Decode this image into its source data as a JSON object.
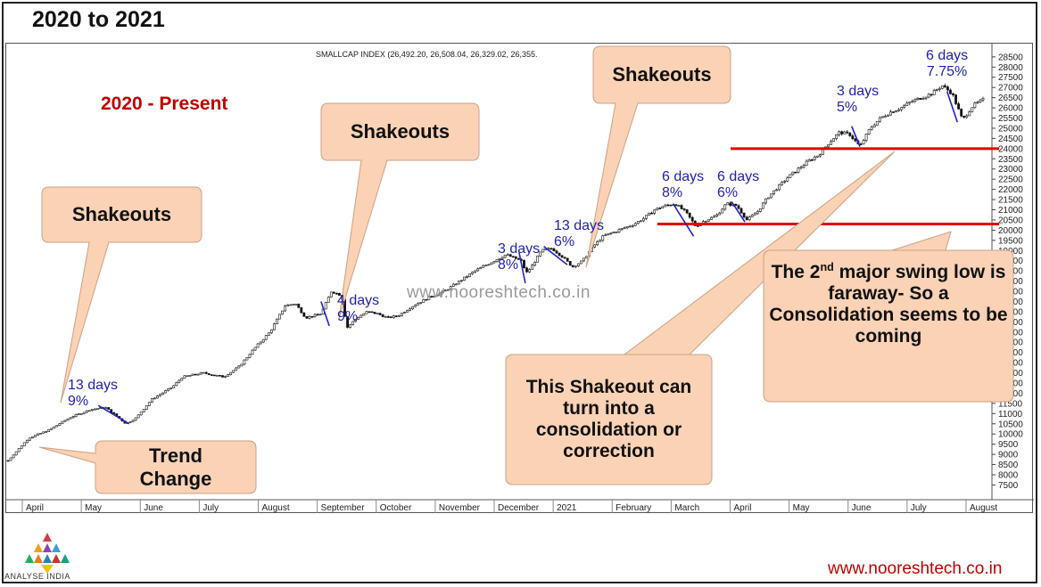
{
  "page": {
    "title": "2020 to 2021",
    "period_label": "2020 - Present",
    "watermark": "www.nooreshtech.co.in",
    "site_url": "www.nooreshtech.co.in",
    "logo_text": "ANALYSE INDIA"
  },
  "callouts": [
    {
      "id": "shakeouts-1",
      "text": "Shakeouts"
    },
    {
      "id": "trend-change",
      "text": "Trend Change"
    },
    {
      "id": "shakeouts-2",
      "text": "Shakeouts"
    },
    {
      "id": "shakeouts-3",
      "text": "Shakeouts"
    },
    {
      "id": "shakeout-consolidation",
      "text": "This Shakeout can turn into a consolidation or correction"
    },
    {
      "id": "swing-low",
      "text_pre": "The 2",
      "text_sup": "nd",
      "text_post": " major swing low is faraway- So a Consolidation seems to be coming"
    }
  ],
  "annotations": [
    {
      "days": "13 days",
      "pct": "9%"
    },
    {
      "days": "4 days",
      "pct": "9%"
    },
    {
      "days": "3 days",
      "pct": "8%"
    },
    {
      "days": "13 days",
      "pct": "6%"
    },
    {
      "days": "6 days",
      "pct": "8%"
    },
    {
      "days": "6 days",
      "pct": "6%"
    },
    {
      "days": "3 days",
      "pct": "5%"
    },
    {
      "days": "6 days",
      "pct": "7.75%"
    }
  ],
  "colors": {
    "callout_fill": "#fbd2b5",
    "callout_stroke": "#c9a184",
    "support_line": "#e00000",
    "annotation": "#1f1fb4",
    "period_label": "#c00000"
  },
  "chart_data": {
    "type": "candlestick",
    "title": "SMALLCAP INDEX (26,492.20, 26,508.04, 26,329.02, 26,355.",
    "x_ticks": [
      "April",
      "May",
      "June",
      "July",
      "August",
      "September",
      "October",
      "November",
      "December",
      "2021",
      "February",
      "March",
      "April",
      "May",
      "June",
      "July",
      "August"
    ],
    "y_ticks": [
      7500,
      8000,
      8500,
      9000,
      9500,
      10000,
      10500,
      11000,
      11500,
      12000,
      12500,
      13000,
      13500,
      14000,
      14500,
      15000,
      15500,
      16000,
      16500,
      17000,
      17500,
      18000,
      18500,
      19000,
      19500,
      20000,
      20500,
      21000,
      21500,
      22000,
      22500,
      23000,
      23500,
      24000,
      24500,
      25000,
      25500,
      26000,
      26500,
      27000,
      27500,
      28000,
      28500
    ],
    "ylim": [
      7300,
      28800
    ],
    "y_axis_position": "right",
    "price_path": [
      [
        0,
        8700
      ],
      [
        2,
        9800
      ],
      [
        4,
        10200
      ],
      [
        6,
        10800
      ],
      [
        8,
        11200
      ],
      [
        9.5,
        11300
      ],
      [
        10.5,
        10900
      ],
      [
        11.5,
        10500
      ],
      [
        12.5,
        10800
      ],
      [
        14,
        11700
      ],
      [
        16,
        12300
      ],
      [
        17,
        12800
      ],
      [
        19,
        13000
      ],
      [
        21,
        12800
      ],
      [
        22.5,
        13300
      ],
      [
        24,
        14200
      ],
      [
        25.5,
        15000
      ],
      [
        27,
        16300
      ],
      [
        28,
        16400
      ],
      [
        29,
        15700
      ],
      [
        30.5,
        15900
      ],
      [
        31.5,
        17000
      ],
      [
        32.5,
        16800
      ],
      [
        33,
        15200
      ],
      [
        34,
        15700
      ],
      [
        35,
        16000
      ],
      [
        36,
        15900
      ],
      [
        37,
        15700
      ],
      [
        38,
        15800
      ],
      [
        39.5,
        16300
      ],
      [
        41,
        16700
      ],
      [
        42.5,
        17000
      ],
      [
        44,
        17500
      ],
      [
        45.5,
        18000
      ],
      [
        47,
        18400
      ],
      [
        48.5,
        18800
      ],
      [
        50,
        18500
      ],
      [
        50.5,
        17900
      ],
      [
        51,
        18200
      ],
      [
        52,
        19000
      ],
      [
        53,
        19100
      ],
      [
        54,
        18700
      ],
      [
        55,
        18200
      ],
      [
        56,
        18500
      ],
      [
        57,
        19200
      ],
      [
        58,
        19700
      ],
      [
        59.5,
        20000
      ],
      [
        61,
        20300
      ],
      [
        62,
        20600
      ],
      [
        63,
        21000
      ],
      [
        64,
        21200
      ],
      [
        65,
        21300
      ],
      [
        66,
        20900
      ],
      [
        67,
        20200
      ],
      [
        68,
        20500
      ],
      [
        69,
        20700
      ],
      [
        70,
        21300
      ],
      [
        71,
        21200
      ],
      [
        72,
        20500
      ],
      [
        73,
        20900
      ],
      [
        74,
        21600
      ],
      [
        75,
        22100
      ],
      [
        76,
        22600
      ],
      [
        77,
        23000
      ],
      [
        78,
        23400
      ],
      [
        79,
        23700
      ],
      [
        80,
        24300
      ],
      [
        81,
        24800
      ],
      [
        82,
        24700
      ],
      [
        83,
        24100
      ],
      [
        84,
        25000
      ],
      [
        85,
        25500
      ],
      [
        86,
        25800
      ],
      [
        87,
        26000
      ],
      [
        88,
        26300
      ],
      [
        89,
        26500
      ],
      [
        90,
        26700
      ],
      [
        91,
        27100
      ],
      [
        92,
        26700
      ],
      [
        93,
        25400
      ],
      [
        94,
        26100
      ],
      [
        95,
        26400
      ]
    ],
    "support_levels": [
      24000,
      20300
    ]
  }
}
